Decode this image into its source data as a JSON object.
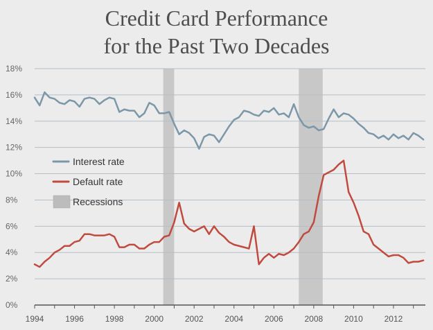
{
  "chart_data": {
    "type": "line",
    "title_lines": [
      "Credit Card Performance",
      "for the Past Two Decades"
    ],
    "xlabel": "",
    "ylabel": "",
    "xlim": [
      1994,
      2013.6
    ],
    "ylim": [
      0,
      18
    ],
    "grid": true,
    "legend_position": "left-middle",
    "x_ticks": [
      1994,
      1996,
      1998,
      2000,
      2002,
      2004,
      2006,
      2008,
      2010,
      2012
    ],
    "x_tick_labels": [
      "1994",
      "1996",
      "1998",
      "2000",
      "2002",
      "2004",
      "2006",
      "2008",
      "2010",
      "2012"
    ],
    "y_ticks": [
      0,
      2,
      4,
      6,
      8,
      10,
      12,
      14,
      16,
      18
    ],
    "y_tick_labels": [
      "0%",
      "2%",
      "4%",
      "6%",
      "8%",
      "10%",
      "12%",
      "14%",
      "16%",
      "18%"
    ],
    "recessions": [
      {
        "start": 2000.45,
        "end": 2001.0
      },
      {
        "start": 2007.25,
        "end": 2008.45
      }
    ],
    "legend": [
      {
        "label": "Interest rate",
        "kind": "line",
        "color": "#7b97a8"
      },
      {
        "label": "Default rate",
        "kind": "line",
        "color": "#c14a3f"
      },
      {
        "label": "Recessions",
        "kind": "area",
        "color": "#bcbcbc"
      }
    ],
    "series": [
      {
        "name": "Interest rate",
        "color": "#7b97a8",
        "x": [
          1994.0,
          1994.25,
          1994.5,
          1994.75,
          1995.0,
          1995.25,
          1995.5,
          1995.75,
          1996.0,
          1996.25,
          1996.5,
          1996.75,
          1997.0,
          1997.25,
          1997.5,
          1997.75,
          1998.0,
          1998.25,
          1998.5,
          1998.75,
          1999.0,
          1999.25,
          1999.5,
          1999.75,
          2000.0,
          2000.25,
          2000.5,
          2000.75,
          2001.0,
          2001.25,
          2001.5,
          2001.75,
          2002.0,
          2002.25,
          2002.5,
          2002.75,
          2003.0,
          2003.25,
          2003.5,
          2003.75,
          2004.0,
          2004.25,
          2004.5,
          2004.75,
          2005.0,
          2005.25,
          2005.5,
          2005.75,
          2006.0,
          2006.25,
          2006.5,
          2006.75,
          2007.0,
          2007.25,
          2007.5,
          2007.75,
          2008.0,
          2008.25,
          2008.5,
          2008.75,
          2009.0,
          2009.25,
          2009.5,
          2009.75,
          2010.0,
          2010.25,
          2010.5,
          2010.75,
          2011.0,
          2011.25,
          2011.5,
          2011.75,
          2012.0,
          2012.25,
          2012.5,
          2012.75,
          2013.0,
          2013.25,
          2013.5
        ],
        "values": [
          15.8,
          15.2,
          16.2,
          15.8,
          15.7,
          15.4,
          15.3,
          15.6,
          15.5,
          15.1,
          15.7,
          15.8,
          15.7,
          15.3,
          15.6,
          15.8,
          15.7,
          14.7,
          14.9,
          14.8,
          14.8,
          14.3,
          14.6,
          15.4,
          15.2,
          14.6,
          14.6,
          14.7,
          13.8,
          13.0,
          13.3,
          13.1,
          12.7,
          11.9,
          12.8,
          13.0,
          12.9,
          12.4,
          13.0,
          13.6,
          14.1,
          14.3,
          14.8,
          14.7,
          14.5,
          14.4,
          14.8,
          14.7,
          15.0,
          14.5,
          14.6,
          14.3,
          15.3,
          14.3,
          13.7,
          13.5,
          13.6,
          13.3,
          13.4,
          14.2,
          14.9,
          14.3,
          14.6,
          14.5,
          14.2,
          13.8,
          13.5,
          13.1,
          13.0,
          12.7,
          12.9,
          12.6,
          13.0,
          12.7,
          12.9,
          12.6,
          13.1,
          12.9,
          12.6
        ]
      },
      {
        "name": "Default rate",
        "color": "#c14a3f",
        "x": [
          1994.0,
          1994.25,
          1994.5,
          1994.75,
          1995.0,
          1995.25,
          1995.5,
          1995.75,
          1996.0,
          1996.25,
          1996.5,
          1996.75,
          1997.0,
          1997.25,
          1997.5,
          1997.75,
          1998.0,
          1998.25,
          1998.5,
          1998.75,
          1999.0,
          1999.25,
          1999.5,
          1999.75,
          2000.0,
          2000.25,
          2000.5,
          2000.75,
          2001.0,
          2001.25,
          2001.5,
          2001.75,
          2002.0,
          2002.25,
          2002.5,
          2002.75,
          2003.0,
          2003.25,
          2003.5,
          2003.75,
          2004.0,
          2004.25,
          2004.5,
          2004.75,
          2005.0,
          2005.25,
          2005.5,
          2005.75,
          2006.0,
          2006.25,
          2006.5,
          2006.75,
          2007.0,
          2007.25,
          2007.5,
          2007.75,
          2008.0,
          2008.25,
          2008.5,
          2008.75,
          2009.0,
          2009.25,
          2009.5,
          2009.75,
          2010.0,
          2010.25,
          2010.5,
          2010.75,
          2011.0,
          2011.25,
          2011.5,
          2011.75,
          2012.0,
          2012.25,
          2012.5,
          2012.75,
          2013.0,
          2013.25,
          2013.5
        ],
        "values": [
          3.1,
          2.9,
          3.3,
          3.6,
          4.0,
          4.2,
          4.5,
          4.5,
          4.8,
          4.9,
          5.4,
          5.4,
          5.3,
          5.3,
          5.3,
          5.4,
          5.2,
          4.4,
          4.4,
          4.6,
          4.6,
          4.3,
          4.3,
          4.6,
          4.8,
          4.8,
          5.2,
          5.3,
          6.3,
          7.8,
          6.2,
          5.8,
          5.6,
          5.8,
          6.0,
          5.4,
          6.0,
          5.5,
          5.2,
          4.8,
          4.6,
          4.5,
          4.4,
          4.3,
          6.0,
          3.1,
          3.6,
          3.9,
          3.6,
          3.9,
          3.8,
          4.0,
          4.3,
          4.8,
          5.4,
          5.6,
          6.3,
          8.3,
          9.9,
          10.1,
          10.3,
          10.7,
          11.0,
          8.6,
          7.8,
          6.8,
          5.6,
          5.4,
          4.6,
          4.3,
          4.0,
          3.7,
          3.8,
          3.8,
          3.6,
          3.2,
          3.3,
          3.3,
          3.4
        ]
      }
    ]
  }
}
